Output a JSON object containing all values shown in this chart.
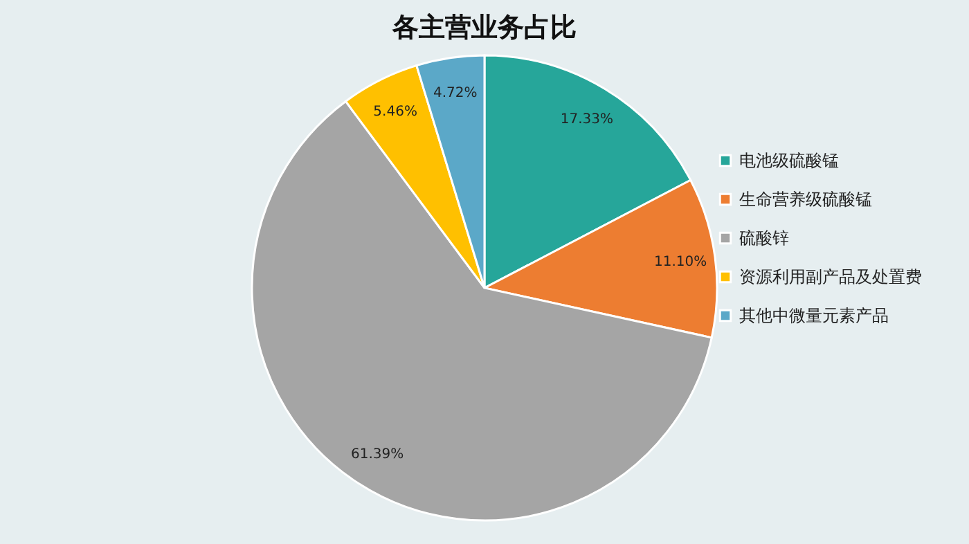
{
  "chart_data": {
    "type": "pie",
    "title": "各主营业务占比",
    "categories": [
      "电池级硫酸锰",
      "生命营养级硫酸锰",
      "硫酸锌",
      "资源利用副产品及处置费",
      "其他中微量元素产品"
    ],
    "values": [
      17.33,
      11.1,
      61.39,
      5.46,
      4.72
    ],
    "value_labels": [
      "17.33%",
      "11.10%",
      "61.39%",
      "5.46%",
      "4.72%"
    ],
    "colors": [
      "#26a69a",
      "#ed7d31",
      "#a5a5a5",
      "#ffc000",
      "#5ba8c8"
    ],
    "legend": "right"
  }
}
